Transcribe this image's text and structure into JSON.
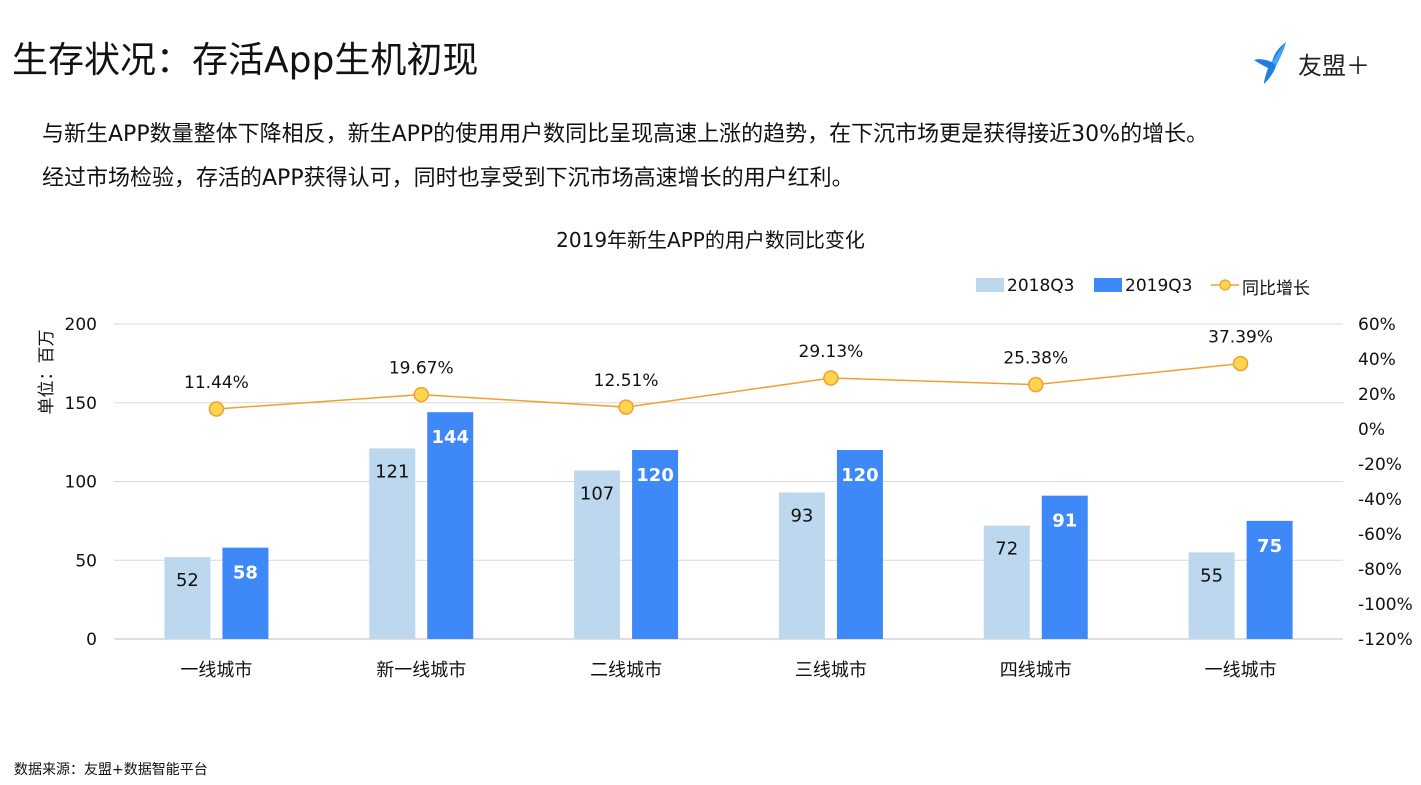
{
  "page": {
    "title": "生存状况：存活App生机初现",
    "logo_text": "友盟＋",
    "paragraph_1": "与新生APP数量整体下降相反，新生APP的使用用户数同比呈现高速上涨的趋势，在下沉市场更是获得接近30%的增长。",
    "paragraph_2": "经过市场检验，存活的APP获得认可，同时也享受到下沉市场高速增长的用户红利。",
    "source": "数据来源：友盟+数据智能平台",
    "colors": {
      "series_2018": "#BDD7EE",
      "series_2019": "#3E88F7",
      "line": "#F0A030",
      "marker_fill": "#FFD54F",
      "grid": "#D9D9D9"
    }
  },
  "chart_data": {
    "type": "bar",
    "title": "2019年新生APP的用户数同比变化",
    "ylabel": "单位：百万",
    "categories": [
      "一线城市",
      "新一线城市",
      "二线城市",
      "三线城市",
      "四线城市",
      "一线城市"
    ],
    "ylim": [
      0,
      200
    ],
    "yticks": [
      "0",
      "50",
      "100",
      "150",
      "200"
    ],
    "y2lim": [
      -120,
      60
    ],
    "y2ticks": [
      "-120%",
      "-100%",
      "-80%",
      "-60%",
      "-40%",
      "-20%",
      "0%",
      "20%",
      "40%",
      "60%"
    ],
    "series": [
      {
        "name": "2018Q3",
        "kind": "bar",
        "values": [
          52,
          121,
          107,
          93,
          72,
          55
        ],
        "labels": [
          "52",
          "121",
          "107",
          "93",
          "72",
          "55"
        ]
      },
      {
        "name": "2019Q3",
        "kind": "bar",
        "values": [
          58,
          144,
          120,
          120,
          91,
          75
        ],
        "labels": [
          "58",
          "144",
          "120",
          "120",
          "91",
          "75"
        ]
      },
      {
        "name": "同比增长",
        "kind": "line",
        "axis": "right",
        "values": [
          11.44,
          19.67,
          12.51,
          29.13,
          25.38,
          37.39
        ],
        "labels": [
          "11.44%",
          "19.67%",
          "12.51%",
          "29.13%",
          "25.38%",
          "37.39%"
        ]
      }
    ],
    "legend_position": "top-right",
    "grid": true
  }
}
